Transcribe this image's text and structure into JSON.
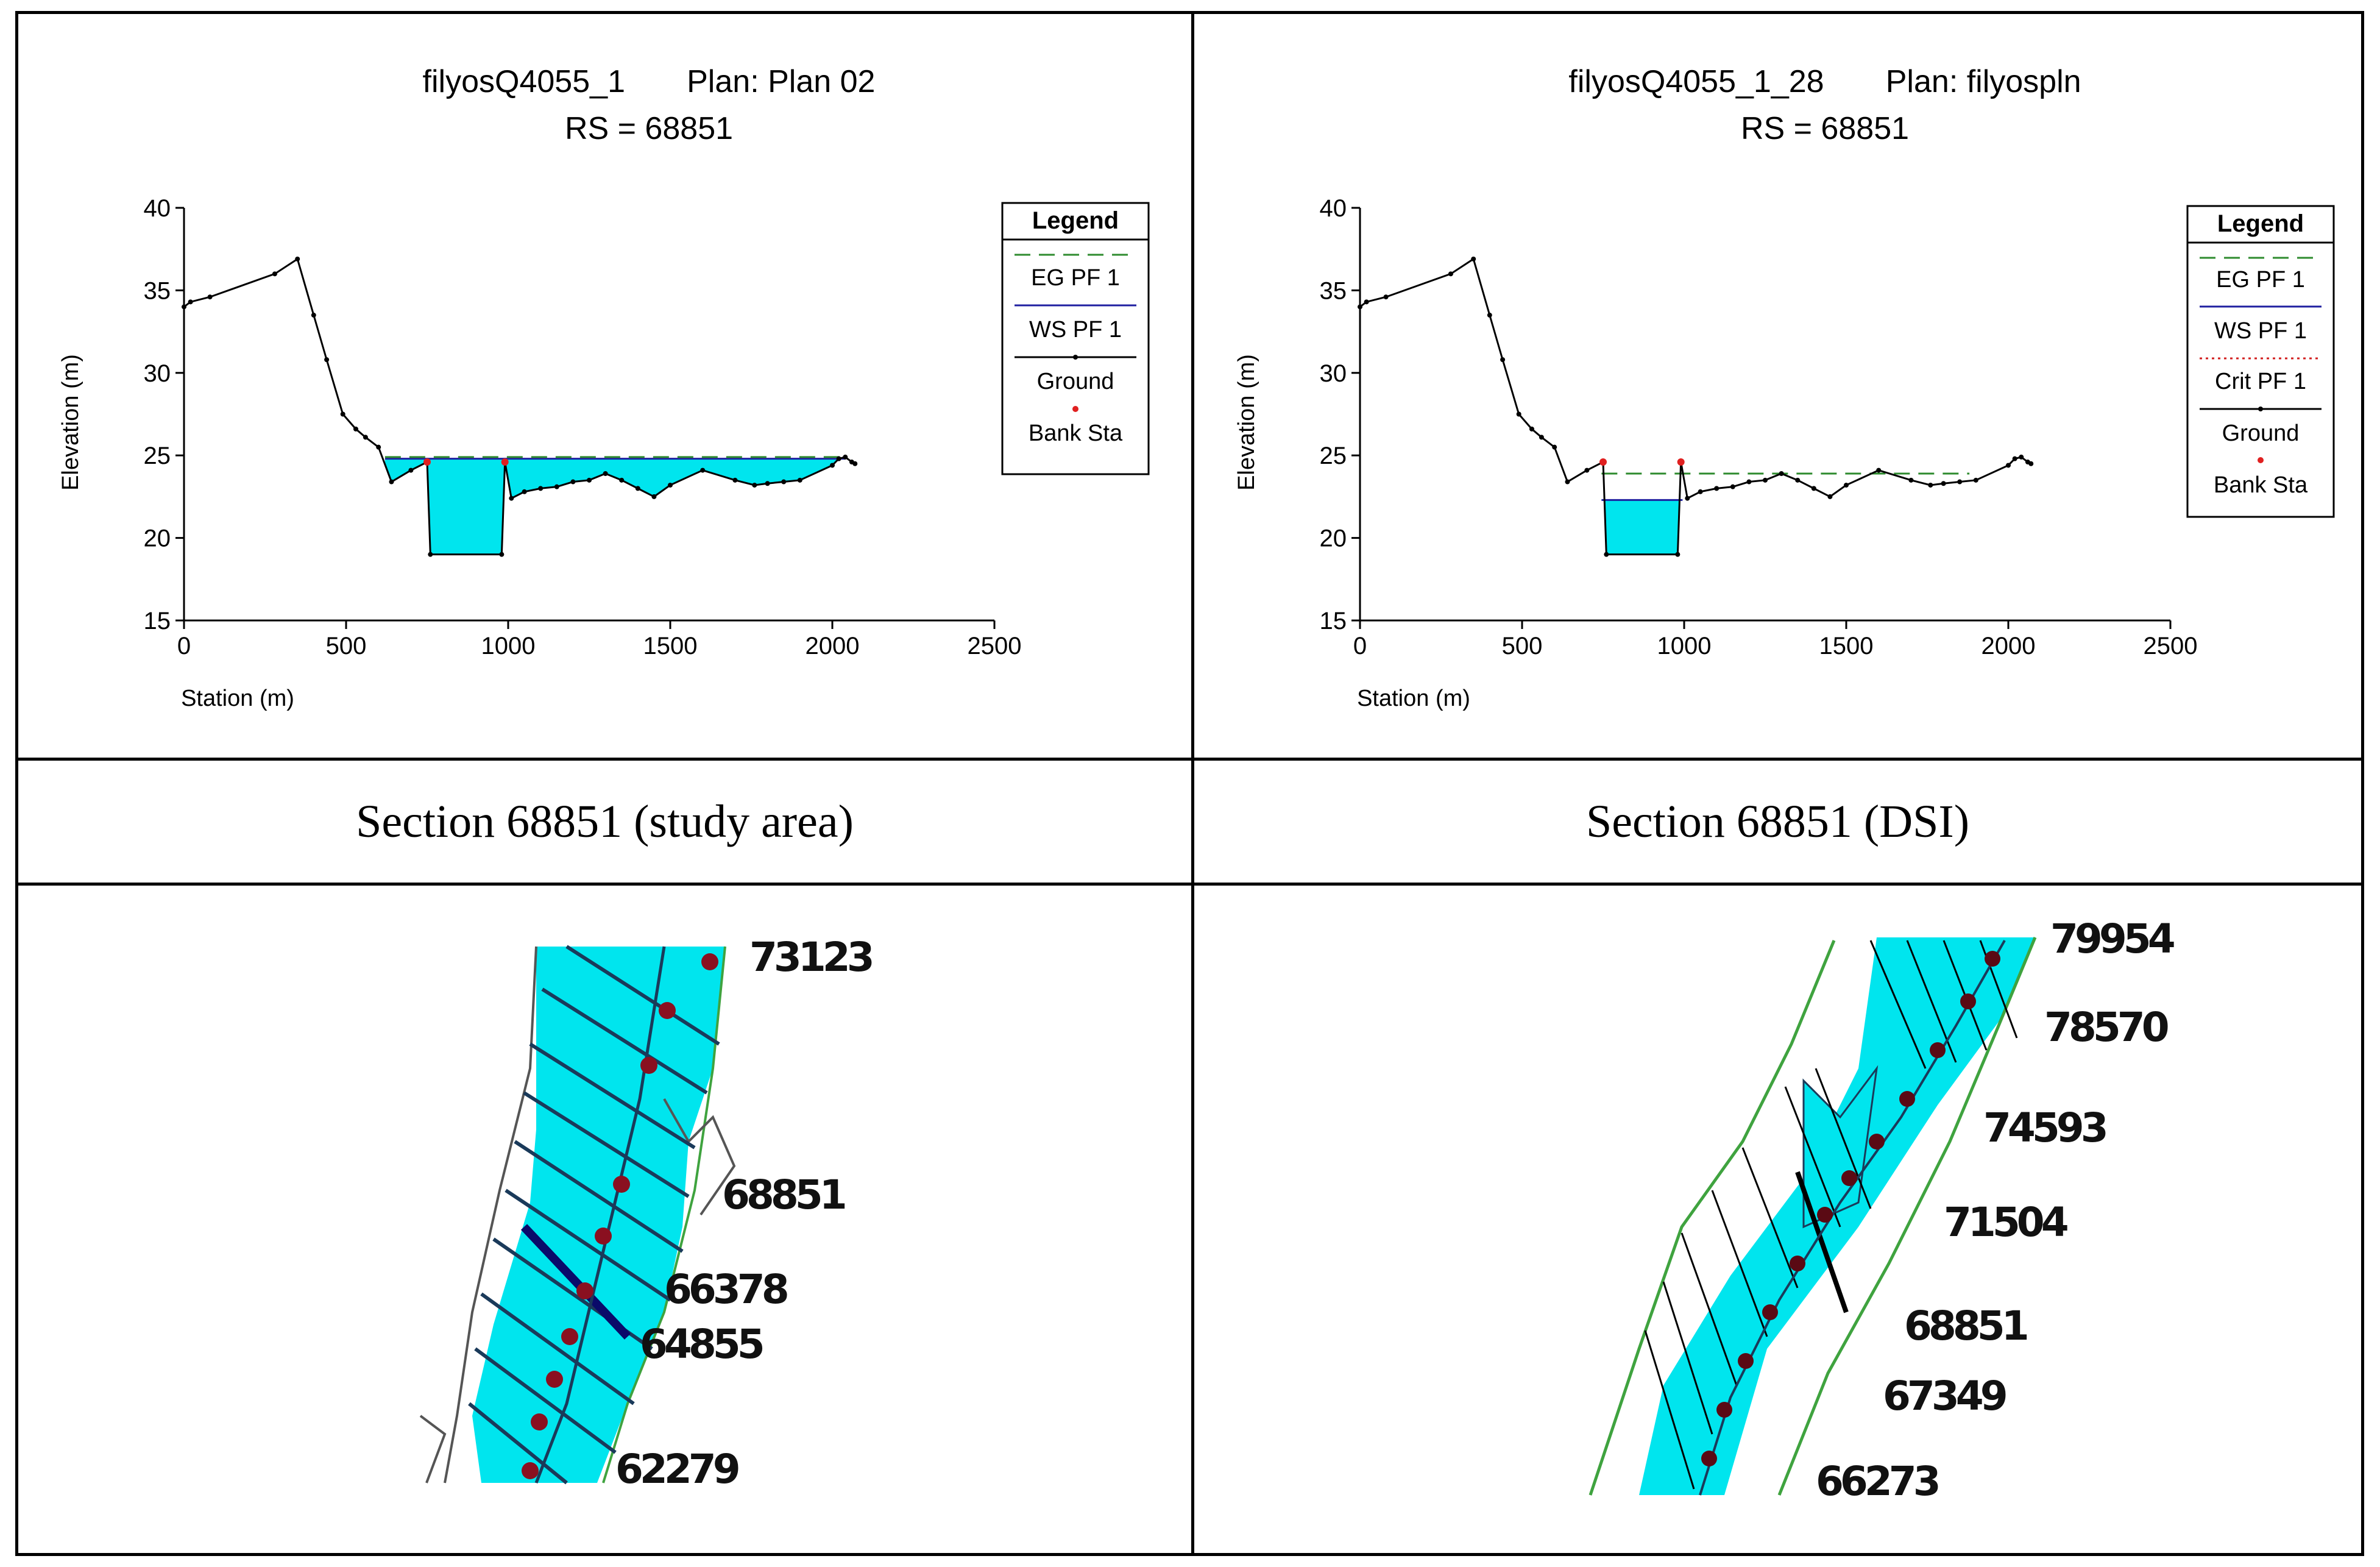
{
  "charts": {
    "left": {
      "title": "filyosQ4055_1       Plan: Plan 02",
      "subtitle": "RS = 68851",
      "legend_title": "Legend",
      "legend": [
        "EG PF 1",
        "WS PF 1",
        "Ground",
        "Bank Sta"
      ],
      "caption": "Section 68851 (study area)"
    },
    "right": {
      "title": "filyosQ4055_1_28       Plan: filyospln",
      "subtitle": "RS = 68851",
      "legend_title": "Legend",
      "legend": [
        "EG PF 1",
        "WS PF 1",
        "Crit PF 1",
        "Ground",
        "Bank Sta"
      ],
      "caption": "Section 68851 (DSI)"
    }
  },
  "colors": {
    "water": "#00e5ee",
    "eg_line": "#2e8b2e",
    "ws_line": "#1f1fa0",
    "crit_line": "#d22020",
    "bank": "#e02020",
    "ground": "#000000",
    "map_outline": "#3fa33f"
  },
  "maps": {
    "left": {
      "labels": [
        "73123",
        "68851",
        "66378",
        "64855",
        "62279"
      ]
    },
    "right": {
      "labels": [
        "79954",
        "78570",
        "74593",
        "71504",
        "68851",
        "67349",
        "66273"
      ]
    }
  },
  "chart_data": [
    {
      "type": "line",
      "title": "filyosQ4055_1       Plan: Plan 02",
      "subtitle": "RS = 68851",
      "xlabel": "Station (m)",
      "ylabel": "Elevation (m)",
      "xlim": [
        0,
        2500
      ],
      "ylim": [
        15,
        40
      ],
      "xticks": [
        0,
        500,
        1000,
        1500,
        2000,
        2500
      ],
      "yticks": [
        15,
        20,
        25,
        30,
        35,
        40
      ],
      "legend_position": "right",
      "ground": [
        [
          0,
          34
        ],
        [
          20,
          34.3
        ],
        [
          80,
          34.6
        ],
        [
          280,
          36
        ],
        [
          350,
          36.9
        ],
        [
          400,
          33.5
        ],
        [
          440,
          30.8
        ],
        [
          490,
          27.5
        ],
        [
          530,
          26.6
        ],
        [
          560,
          26.1
        ],
        [
          600,
          25.5
        ],
        [
          640,
          23.4
        ],
        [
          700,
          24.1
        ],
        [
          750,
          24.6
        ],
        [
          760,
          19
        ],
        [
          980,
          19
        ],
        [
          990,
          24.6
        ],
        [
          1010,
          22.4
        ],
        [
          1050,
          22.8
        ],
        [
          1100,
          23
        ],
        [
          1150,
          23.1
        ],
        [
          1200,
          23.4
        ],
        [
          1250,
          23.5
        ],
        [
          1300,
          23.9
        ],
        [
          1350,
          23.5
        ],
        [
          1400,
          23
        ],
        [
          1450,
          22.5
        ],
        [
          1500,
          23.2
        ],
        [
          1600,
          24.1
        ],
        [
          1700,
          23.5
        ],
        [
          1760,
          23.2
        ],
        [
          1800,
          23.3
        ],
        [
          1850,
          23.4
        ],
        [
          1900,
          23.5
        ],
        [
          2000,
          24.4
        ],
        [
          2020,
          24.8
        ],
        [
          2040,
          24.9
        ],
        [
          2060,
          24.6
        ],
        [
          2070,
          24.5
        ]
      ],
      "water_surface": 24.8,
      "energy_grade": 24.9,
      "bank_stations": [
        [
          750,
          24.6
        ],
        [
          990,
          24.6
        ]
      ],
      "series": [
        {
          "name": "EG PF 1",
          "style": "dashed",
          "elevation": 24.9
        },
        {
          "name": "WS PF 1",
          "style": "solid",
          "elevation": 24.8
        },
        {
          "name": "Ground",
          "style": "solid-points"
        },
        {
          "name": "Bank Sta",
          "style": "point"
        }
      ]
    },
    {
      "type": "line",
      "title": "filyosQ4055_1_28       Plan: filyospln",
      "subtitle": "RS = 68851",
      "xlabel": "Station (m)",
      "ylabel": "Elevation (m)",
      "xlim": [
        0,
        2500
      ],
      "ylim": [
        15,
        40
      ],
      "xticks": [
        0,
        500,
        1000,
        1500,
        2000,
        2500
      ],
      "yticks": [
        15,
        20,
        25,
        30,
        35,
        40
      ],
      "legend_position": "right",
      "ground": [
        [
          0,
          34
        ],
        [
          20,
          34.3
        ],
        [
          80,
          34.6
        ],
        [
          280,
          36
        ],
        [
          350,
          36.9
        ],
        [
          400,
          33.5
        ],
        [
          440,
          30.8
        ],
        [
          490,
          27.5
        ],
        [
          530,
          26.6
        ],
        [
          560,
          26.1
        ],
        [
          600,
          25.5
        ],
        [
          640,
          23.4
        ],
        [
          700,
          24.1
        ],
        [
          750,
          24.6
        ],
        [
          760,
          19
        ],
        [
          980,
          19
        ],
        [
          990,
          24.6
        ],
        [
          1010,
          22.4
        ],
        [
          1050,
          22.8
        ],
        [
          1100,
          23
        ],
        [
          1150,
          23.1
        ],
        [
          1200,
          23.4
        ],
        [
          1250,
          23.5
        ],
        [
          1300,
          23.9
        ],
        [
          1350,
          23.5
        ],
        [
          1400,
          23
        ],
        [
          1450,
          22.5
        ],
        [
          1500,
          23.2
        ],
        [
          1600,
          24.1
        ],
        [
          1700,
          23.5
        ],
        [
          1760,
          23.2
        ],
        [
          1800,
          23.3
        ],
        [
          1850,
          23.4
        ],
        [
          1900,
          23.5
        ],
        [
          2000,
          24.4
        ],
        [
          2020,
          24.8
        ],
        [
          2040,
          24.9
        ],
        [
          2060,
          24.6
        ],
        [
          2070,
          24.5
        ]
      ],
      "water_surface": 22.3,
      "energy_grade": 23.9,
      "bank_stations": [
        [
          750,
          24.6
        ],
        [
          990,
          24.6
        ]
      ],
      "series": [
        {
          "name": "EG PF 1",
          "style": "dashed",
          "elevation": 23.9
        },
        {
          "name": "WS PF 1",
          "style": "solid",
          "elevation": 22.3
        },
        {
          "name": "Crit PF 1",
          "style": "dotted"
        },
        {
          "name": "Ground",
          "style": "solid-points"
        },
        {
          "name": "Bank Sta",
          "style": "point"
        }
      ]
    }
  ]
}
